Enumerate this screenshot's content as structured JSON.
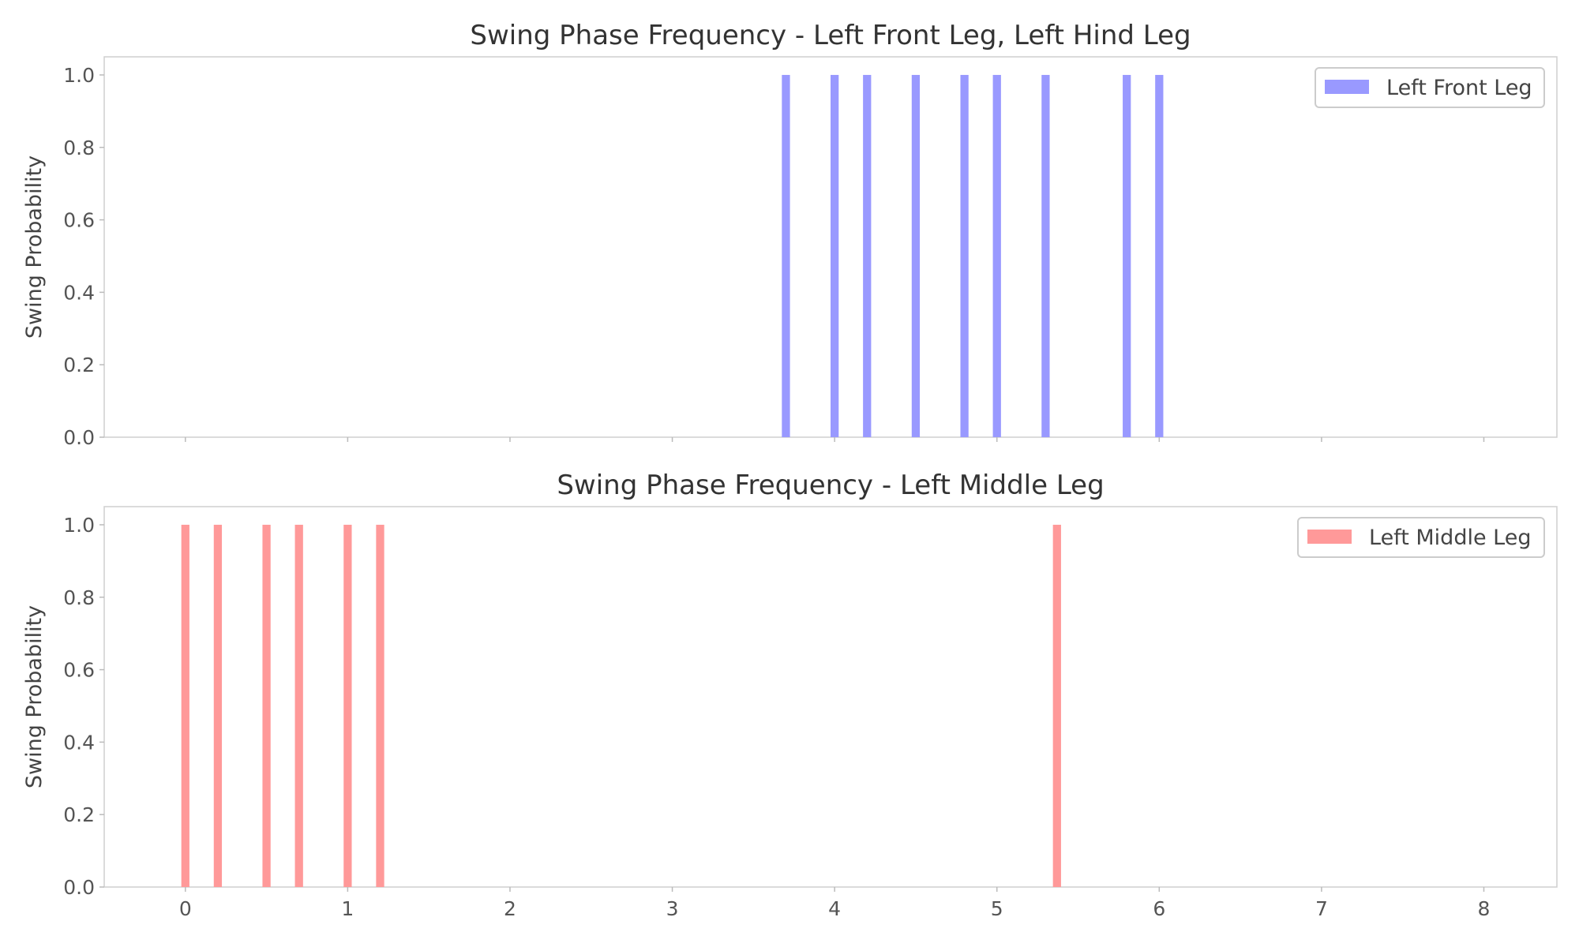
{
  "chart_data": [
    {
      "type": "bar",
      "title": "Swing Phase Frequency - Left Front Leg, Left Hind Leg",
      "xlabel": "",
      "ylabel": "Swing Probability",
      "xlim": [
        -0.5,
        8.45
      ],
      "ylim": [
        0.0,
        1.05
      ],
      "x_ticks": [
        0,
        1,
        2,
        3,
        4,
        5,
        6,
        7,
        8
      ],
      "x_tick_labels": [
        "",
        "",
        "",
        "",
        "",
        "",
        "",
        "",
        ""
      ],
      "y_ticks": [
        0.0,
        0.2,
        0.4,
        0.6,
        0.8,
        1.0
      ],
      "y_tick_labels": [
        "0.0",
        "0.2",
        "0.4",
        "0.6",
        "0.8",
        "1.0"
      ],
      "bar_width": 0.05,
      "legend_position": "upper right",
      "series": [
        {
          "name": "Left Front Leg",
          "color": "#9999ff",
          "x": [
            3.7,
            4.0,
            4.2,
            4.5,
            4.8,
            5.0,
            5.3,
            5.8,
            6.0
          ],
          "values": [
            1.0,
            1.0,
            1.0,
            1.0,
            1.0,
            1.0,
            1.0,
            1.0,
            1.0
          ]
        }
      ]
    },
    {
      "type": "bar",
      "title": "Swing Phase Frequency - Left Middle Leg",
      "xlabel": "",
      "ylabel": "Swing Probability",
      "xlim": [
        -0.5,
        8.45
      ],
      "ylim": [
        0.0,
        1.05
      ],
      "x_ticks": [
        0,
        1,
        2,
        3,
        4,
        5,
        6,
        7,
        8
      ],
      "x_tick_labels": [
        "0",
        "1",
        "2",
        "3",
        "4",
        "5",
        "6",
        "7",
        "8"
      ],
      "y_ticks": [
        0.0,
        0.2,
        0.4,
        0.6,
        0.8,
        1.0
      ],
      "y_tick_labels": [
        "0.0",
        "0.2",
        "0.4",
        "0.6",
        "0.8",
        "1.0"
      ],
      "bar_width": 0.05,
      "legend_position": "upper right",
      "series": [
        {
          "name": "Left Middle Leg",
          "color": "#ff9999",
          "x": [
            0.0,
            0.2,
            0.5,
            0.7,
            1.0,
            1.2,
            5.37
          ],
          "values": [
            1.0,
            1.0,
            1.0,
            1.0,
            1.0,
            1.0,
            1.0
          ]
        }
      ]
    }
  ]
}
